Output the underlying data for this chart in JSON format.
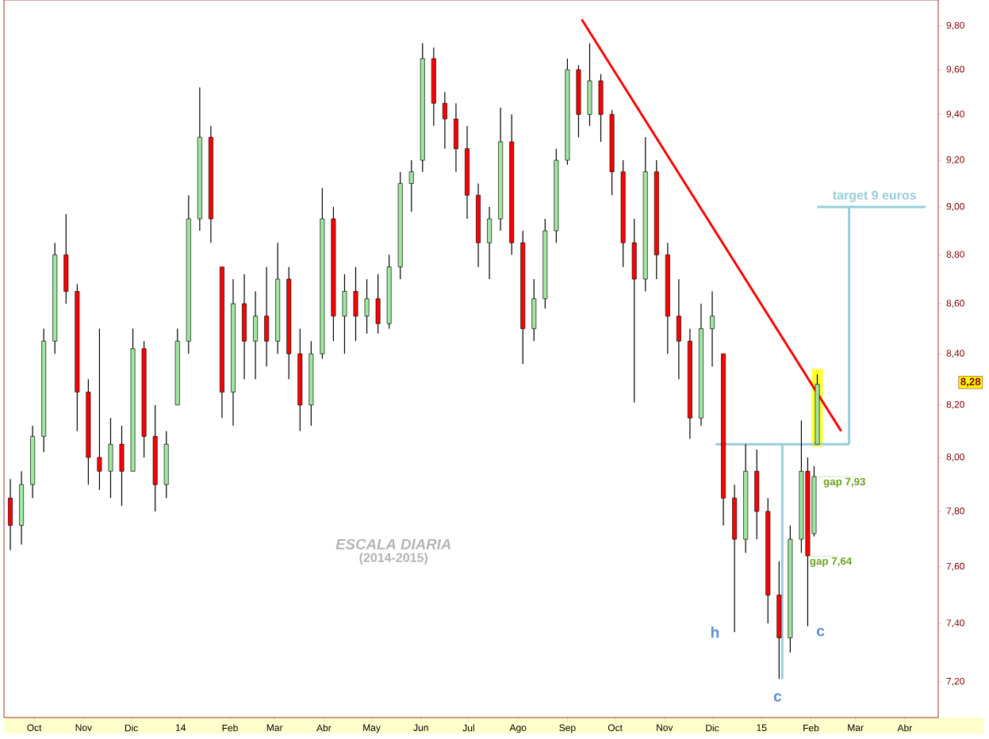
{
  "chart_data": {
    "type": "candlestick",
    "x": [
      "2013-09-16",
      "2013-09-23",
      "2013-09-30",
      "2013-10-07",
      "2013-10-14",
      "2013-10-21",
      "2013-10-28",
      "2013-11-04",
      "2013-11-11",
      "2013-11-18",
      "2013-11-25",
      "2013-12-02",
      "2013-12-09",
      "2013-12-16",
      "2013-12-23",
      "2013-12-30",
      "2014-01-06",
      "2014-01-13",
      "2014-01-20",
      "2014-01-27",
      "2014-02-03",
      "2014-02-10",
      "2014-02-17",
      "2014-02-24",
      "2014-03-03",
      "2014-03-10",
      "2014-03-17",
      "2014-03-24",
      "2014-03-31",
      "2014-04-07",
      "2014-04-14",
      "2014-04-21",
      "2014-04-28",
      "2014-05-05",
      "2014-05-12",
      "2014-05-19",
      "2014-05-26",
      "2014-06-02",
      "2014-06-09",
      "2014-06-16",
      "2014-06-23",
      "2014-06-30",
      "2014-07-07",
      "2014-07-14",
      "2014-07-21",
      "2014-07-28",
      "2014-08-04",
      "2014-08-11",
      "2014-08-18",
      "2014-08-25",
      "2014-09-01",
      "2014-09-08",
      "2014-09-15",
      "2014-09-22",
      "2014-09-29",
      "2014-10-06",
      "2014-10-13",
      "2014-10-20",
      "2014-10-27",
      "2014-11-03",
      "2014-11-10",
      "2014-11-17",
      "2014-11-24",
      "2014-12-01",
      "2014-12-08",
      "2014-12-15",
      "2014-12-22",
      "2014-12-29",
      "2015-01-05",
      "2015-01-12",
      "2015-01-19",
      "2015-01-26",
      "2015-01-30",
      "2015-02-03",
      "2015-02-05"
    ],
    "ohlc": [
      [
        7.85,
        7.92,
        7.66,
        7.75
      ],
      [
        7.75,
        7.95,
        7.68,
        7.9
      ],
      [
        7.9,
        8.12,
        7.85,
        8.08
      ],
      [
        8.08,
        8.5,
        8.02,
        8.45
      ],
      [
        8.45,
        8.85,
        8.4,
        8.8
      ],
      [
        8.8,
        8.97,
        8.6,
        8.65
      ],
      [
        8.65,
        8.68,
        8.1,
        8.25
      ],
      [
        8.25,
        8.3,
        7.9,
        8.0
      ],
      [
        8.0,
        8.5,
        7.88,
        7.95
      ],
      [
        7.95,
        8.15,
        7.85,
        8.05
      ],
      [
        8.05,
        8.12,
        7.82,
        7.95
      ],
      [
        7.95,
        8.5,
        7.95,
        8.42
      ],
      [
        8.42,
        8.45,
        8.0,
        8.08
      ],
      [
        8.08,
        8.2,
        7.8,
        7.9
      ],
      [
        7.9,
        8.1,
        7.85,
        8.05
      ],
      [
        8.2,
        8.5,
        8.2,
        8.45
      ],
      [
        8.45,
        9.05,
        8.4,
        8.95
      ],
      [
        8.95,
        9.52,
        8.9,
        9.3
      ],
      [
        9.3,
        9.35,
        8.85,
        8.95
      ],
      [
        8.75,
        8.75,
        8.15,
        8.25
      ],
      [
        8.25,
        8.7,
        8.12,
        8.6
      ],
      [
        8.6,
        8.72,
        8.3,
        8.45
      ],
      [
        8.45,
        8.65,
        8.3,
        8.55
      ],
      [
        8.55,
        8.75,
        8.35,
        8.45
      ],
      [
        8.45,
        8.85,
        8.4,
        8.7
      ],
      [
        8.7,
        8.75,
        8.3,
        8.4
      ],
      [
        8.4,
        8.5,
        8.1,
        8.2
      ],
      [
        8.2,
        8.45,
        8.12,
        8.4
      ],
      [
        8.4,
        9.08,
        8.38,
        8.95
      ],
      [
        8.95,
        9.0,
        8.45,
        8.55
      ],
      [
        8.55,
        8.72,
        8.4,
        8.65
      ],
      [
        8.65,
        8.75,
        8.45,
        8.55
      ],
      [
        8.55,
        8.7,
        8.48,
        8.62
      ],
      [
        8.62,
        8.72,
        8.48,
        8.52
      ],
      [
        8.52,
        8.8,
        8.5,
        8.75
      ],
      [
        8.75,
        9.15,
        8.7,
        9.1
      ],
      [
        9.1,
        9.2,
        8.98,
        9.15
      ],
      [
        9.2,
        9.72,
        9.15,
        9.65
      ],
      [
        9.65,
        9.7,
        9.35,
        9.45
      ],
      [
        9.45,
        9.5,
        9.25,
        9.38
      ],
      [
        9.38,
        9.45,
        9.15,
        9.25
      ],
      [
        9.25,
        9.35,
        8.95,
        9.05
      ],
      [
        9.05,
        9.1,
        8.75,
        8.85
      ],
      [
        8.85,
        9.0,
        8.7,
        8.95
      ],
      [
        8.95,
        9.43,
        8.9,
        9.28
      ],
      [
        9.28,
        9.4,
        8.8,
        8.85
      ],
      [
        8.85,
        8.9,
        8.36,
        8.5
      ],
      [
        8.5,
        8.7,
        8.45,
        8.62
      ],
      [
        8.62,
        8.95,
        8.58,
        8.9
      ],
      [
        8.9,
        9.25,
        8.85,
        9.2
      ],
      [
        9.2,
        9.65,
        9.18,
        9.6
      ],
      [
        9.6,
        9.62,
        9.3,
        9.4
      ],
      [
        9.4,
        9.72,
        9.35,
        9.55
      ],
      [
        9.55,
        9.58,
        9.28,
        9.4
      ],
      [
        9.4,
        9.42,
        9.05,
        9.15
      ],
      [
        9.15,
        9.2,
        8.75,
        8.85
      ],
      [
        8.85,
        8.95,
        8.21,
        8.7
      ],
      [
        8.7,
        9.3,
        8.65,
        9.15
      ],
      [
        9.15,
        9.2,
        8.7,
        8.8
      ],
      [
        8.8,
        8.85,
        8.4,
        8.55
      ],
      [
        8.55,
        8.7,
        8.3,
        8.45
      ],
      [
        8.45,
        8.5,
        8.07,
        8.15
      ],
      [
        8.15,
        8.6,
        8.12,
        8.5
      ],
      [
        8.5,
        8.65,
        8.35,
        8.55
      ],
      [
        8.4,
        8.4,
        7.75,
        7.85
      ],
      [
        7.85,
        7.9,
        7.37,
        7.7
      ],
      [
        7.7,
        8.05,
        7.65,
        7.95
      ],
      [
        7.95,
        8.03,
        7.7,
        7.8
      ],
      [
        7.8,
        7.85,
        7.4,
        7.5
      ],
      [
        7.5,
        7.62,
        7.21,
        7.35
      ],
      [
        7.35,
        7.75,
        7.3,
        7.7
      ],
      [
        7.7,
        8.14,
        7.65,
        7.95
      ],
      [
        7.95,
        8.0,
        7.39,
        7.64
      ],
      [
        7.72,
        7.97,
        7.71,
        7.93
      ],
      [
        8.05,
        8.32,
        8.05,
        8.28
      ]
    ],
    "colors": [
      "#ff0000",
      "#a0e8a0",
      "#a0e8a0",
      "#a0e8a0",
      "#a0e8a0",
      "#ff0000",
      "#ff0000",
      "#ff0000",
      "#ff0000",
      "#a0e8a0",
      "#ff0000",
      "#a0e8a0",
      "#ff0000",
      "#ff0000",
      "#a0e8a0",
      "#a0e8a0",
      "#a0e8a0",
      "#a0e8a0",
      "#ff0000",
      "#ff0000",
      "#a0e8a0",
      "#ff0000",
      "#a0e8a0",
      "#ff0000",
      "#a0e8a0",
      "#ff0000",
      "#ff0000",
      "#a0e8a0",
      "#a0e8a0",
      "#ff0000",
      "#a0e8a0",
      "#ff0000",
      "#a0e8a0",
      "#ff0000",
      "#a0e8a0",
      "#a0e8a0",
      "#a0e8a0",
      "#a0e8a0",
      "#ff0000",
      "#ff0000",
      "#ff0000",
      "#ff0000",
      "#ff0000",
      "#a0e8a0",
      "#a0e8a0",
      "#ff0000",
      "#ff0000",
      "#a0e8a0",
      "#a0e8a0",
      "#a0e8a0",
      "#a0e8a0",
      "#ff0000",
      "#a0e8a0",
      "#ff0000",
      "#ff0000",
      "#ff0000",
      "#ff0000",
      "#a0e8a0",
      "#ff0000",
      "#ff0000",
      "#ff0000",
      "#ff0000",
      "#a0e8a0",
      "#a0e8a0",
      "#ff0000",
      "#ff0000",
      "#a0e8a0",
      "#ff0000",
      "#ff0000",
      "#ff0000",
      "#a0e8a0",
      "#a0e8a0",
      "#ff0000",
      "#a0e8a0",
      "#a0e8a0"
    ],
    "series": [
      {
        "type": "bar",
        "color": "#ffff33",
        "x": [
          "2015-02-05"
        ],
        "base": [
          8.04
        ],
        "values": [
          0.3
        ]
      },
      {
        "type": "line",
        "color": "#ff0000",
        "x": [
          "2014-09-10",
          "2015-02-20"
        ],
        "values": [
          9.83,
          8.1
        ]
      },
      {
        "type": "line",
        "color": "#96cdd9",
        "x": [
          "2014-12-03",
          "2015-02-25"
        ],
        "values": [
          8.05,
          8.05
        ]
      },
      {
        "type": "line",
        "color": "#96cdd9",
        "x": [
          "2015-01-14",
          "2015-01-14"
        ],
        "values": [
          8.05,
          7.21
        ]
      },
      {
        "type": "line",
        "color": "#96cdd9",
        "x": [
          "2015-02-25",
          "2015-02-25"
        ],
        "values": [
          8.05,
          9.0
        ]
      },
      {
        "type": "line",
        "color": "#96cdd9",
        "x": [
          "2015-02-05",
          "2015-04-14"
        ],
        "values": [
          9.0,
          9.0
        ]
      }
    ],
    "annotations": [
      {
        "text": "target 9 euros",
        "x": "2015-03-13",
        "y": 9.0
      },
      {
        "text": "gap 7,93",
        "x": "2015-02-03",
        "y": 7.93
      },
      "gap 7,64",
      "h",
      "c",
      "c",
      "8,28",
      "ESCALA DIARIA",
      "(2014-2015)"
    ],
    "log": "y",
    "xlim": [
      "2013-09-12",
      "2015-04-22"
    ],
    "ylim": [
      7.08,
      9.92
    ],
    "xticks": [
      {
        "value": "2013-10-01",
        "label": "Oct"
      },
      {
        "value": "2013-11-01",
        "label": "Nov"
      },
      {
        "value": "2013-12-01",
        "label": "Dic"
      },
      {
        "value": "2014-01-01",
        "label": "14"
      },
      {
        "value": "2014-02-01",
        "label": "Feb"
      },
      {
        "value": "2014-03-01",
        "label": "Mar"
      },
      {
        "value": "2014-04-01",
        "label": "Abr"
      },
      {
        "value": "2014-05-01",
        "label": "May"
      },
      {
        "value": "2014-06-01",
        "label": "Jun"
      },
      {
        "value": "2014-07-01",
        "label": "Jul"
      },
      {
        "value": "2014-08-01",
        "label": "Ago"
      },
      {
        "value": "2014-09-01",
        "label": "Sep"
      },
      {
        "value": "2014-10-01",
        "label": "Oct"
      },
      {
        "value": "2014-11-01",
        "label": "Nov"
      },
      {
        "value": "2014-12-01",
        "label": "Dic"
      },
      {
        "value": "2015-01-01",
        "label": "15"
      },
      {
        "value": "2015-02-01",
        "label": "Feb"
      },
      {
        "value": "2015-03-01",
        "label": "Mar"
      },
      {
        "value": "2015-04-01",
        "label": "Abr"
      }
    ],
    "yticks": [
      {
        "value": 7.2,
        "label": "7,20"
      },
      {
        "value": 7.4,
        "label": "7,40"
      },
      {
        "value": 7.6,
        "label": "7,60"
      },
      {
        "value": 7.8,
        "label": "7,80"
      },
      {
        "value": 8.0,
        "label": "8,00"
      },
      {
        "value": 8.2,
        "label": "8,20"
      },
      {
        "value": 8.4,
        "label": "8,40"
      },
      {
        "value": 8.6,
        "label": "8,60"
      },
      {
        "value": 8.8,
        "label": "8,80"
      },
      {
        "value": 9.0,
        "label": "9,00"
      },
      {
        "value": 9.2,
        "label": "9,20"
      },
      {
        "value": 9.4,
        "label": "9,40"
      },
      {
        "value": 9.6,
        "label": "9,60"
      },
      {
        "value": 9.8,
        "label": "9,80"
      }
    ]
  }
}
